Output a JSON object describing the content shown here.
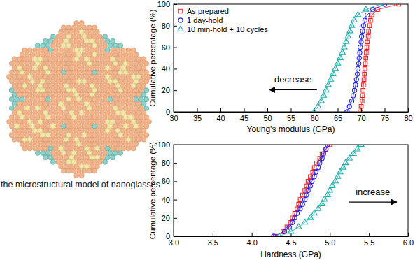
{
  "diagram": {
    "caption": "the microstructural model of nanoglasses"
  },
  "chart_data": [
    {
      "type": "line",
      "x_label": "Young's modulus (GPa)",
      "y_label": "Cumulative percentage (%)",
      "xlim": [
        30,
        80
      ],
      "xticks": [
        30,
        35,
        40,
        45,
        50,
        55,
        60,
        65,
        70,
        75,
        80
      ],
      "ylim": [
        0,
        100
      ],
      "yticks": [
        0,
        20,
        40,
        60,
        80,
        100
      ],
      "legend": "top-left",
      "annotations": [
        {
          "text": "decrease",
          "x": 55.5,
          "y": 27
        }
      ],
      "series": [
        {
          "name": "As prepared",
          "color": "#ff2020",
          "marker": "square",
          "line_style": "solid",
          "x": [
            69.8,
            70.0,
            70.2,
            70.3,
            70.4,
            70.5,
            70.6,
            70.7,
            70.8,
            70.9,
            71.0,
            71.1,
            71.2,
            71.3,
            71.5,
            71.6,
            71.8,
            72.0,
            72.3,
            73.5,
            78.0
          ],
          "values": [
            0,
            5,
            10,
            15,
            20,
            25,
            30,
            35,
            40,
            45,
            50,
            55,
            60,
            65,
            70,
            75,
            80,
            85,
            90,
            95,
            100
          ]
        },
        {
          "name": "1 day-hold",
          "color": "#2020ff",
          "marker": "circle",
          "line_style": "solid",
          "x": [
            67.0,
            67.5,
            68.0,
            68.3,
            68.6,
            68.8,
            69.0,
            69.2,
            69.3,
            69.5,
            69.6,
            69.7,
            69.8,
            70.0,
            70.1,
            70.3,
            70.5,
            70.8,
            71.3,
            72.5,
            75.0
          ],
          "values": [
            0,
            5,
            10,
            15,
            20,
            25,
            30,
            35,
            40,
            45,
            50,
            55,
            60,
            65,
            70,
            75,
            80,
            85,
            90,
            95,
            100
          ]
        },
        {
          "name": "10 min-hold + 10 cycles",
          "color": "#20b0b0",
          "marker": "triangle",
          "line_style": "solid",
          "x": [
            60.0,
            60.8,
            61.5,
            62.0,
            62.5,
            63.0,
            63.5,
            64.0,
            64.5,
            65.0,
            65.5,
            66.0,
            66.4,
            66.8,
            67.2,
            67.6,
            68.0,
            68.5,
            69.3,
            71.0,
            74.0
          ],
          "values": [
            0,
            5,
            10,
            15,
            20,
            25,
            30,
            35,
            40,
            45,
            50,
            55,
            60,
            65,
            70,
            75,
            80,
            85,
            90,
            95,
            100
          ]
        }
      ]
    },
    {
      "type": "line",
      "x_label": "Hardness (GPa)",
      "y_label": "Cumulative percentage (%)",
      "xlim": [
        3,
        6
      ],
      "xticks": [
        {
          "value": 3,
          "label": "3.0"
        },
        {
          "value": 3.5,
          "label": "3.5"
        },
        {
          "value": 4,
          "label": "4.0"
        },
        {
          "value": 4.5,
          "label": "4.5"
        },
        {
          "value": 5,
          "label": "5.0"
        },
        {
          "value": 5.5,
          "label": "5.5"
        },
        {
          "value": 6,
          "label": "6.0"
        }
      ],
      "ylim": [
        0,
        100
      ],
      "yticks": [
        0,
        20,
        40,
        60,
        80,
        100
      ],
      "annotations": [
        {
          "text": "increase",
          "x": 5.55,
          "y": 45
        }
      ],
      "series": [
        {
          "color": "#ff2020",
          "marker": "square",
          "line_style": "solid",
          "x": [
            4.3,
            4.4,
            4.45,
            4.5,
            4.52,
            4.55,
            4.58,
            4.6,
            4.62,
            4.65,
            4.68,
            4.7,
            4.72,
            4.75,
            4.78,
            4.8,
            4.83,
            4.87,
            4.9,
            4.95,
            5.0
          ],
          "values": [
            0,
            5,
            10,
            15,
            20,
            25,
            30,
            35,
            40,
            45,
            50,
            55,
            60,
            65,
            70,
            75,
            80,
            85,
            90,
            95,
            100
          ]
        },
        {
          "color": "#2020ff",
          "marker": "circle",
          "line_style": "solid",
          "x": [
            4.28,
            4.42,
            4.48,
            4.52,
            4.55,
            4.58,
            4.62,
            4.65,
            4.68,
            4.7,
            4.72,
            4.75,
            4.77,
            4.8,
            4.82,
            4.85,
            4.87,
            4.9,
            4.92,
            4.95,
            4.97
          ],
          "values": [
            0,
            5,
            10,
            15,
            20,
            25,
            30,
            35,
            40,
            45,
            50,
            55,
            60,
            65,
            70,
            75,
            80,
            85,
            90,
            95,
            100
          ]
        },
        {
          "color": "#20b0b0",
          "marker": "triangle",
          "line_style": "solid",
          "x": [
            4.35,
            4.5,
            4.6,
            4.68,
            4.75,
            4.8,
            4.85,
            4.9,
            4.93,
            4.97,
            5.0,
            5.03,
            5.07,
            5.1,
            5.13,
            5.17,
            5.2,
            5.25,
            5.3,
            5.35,
            5.4
          ],
          "values": [
            0,
            5,
            10,
            15,
            20,
            25,
            30,
            35,
            40,
            45,
            50,
            55,
            60,
            65,
            70,
            75,
            80,
            85,
            90,
            95,
            100
          ]
        }
      ]
    }
  ]
}
